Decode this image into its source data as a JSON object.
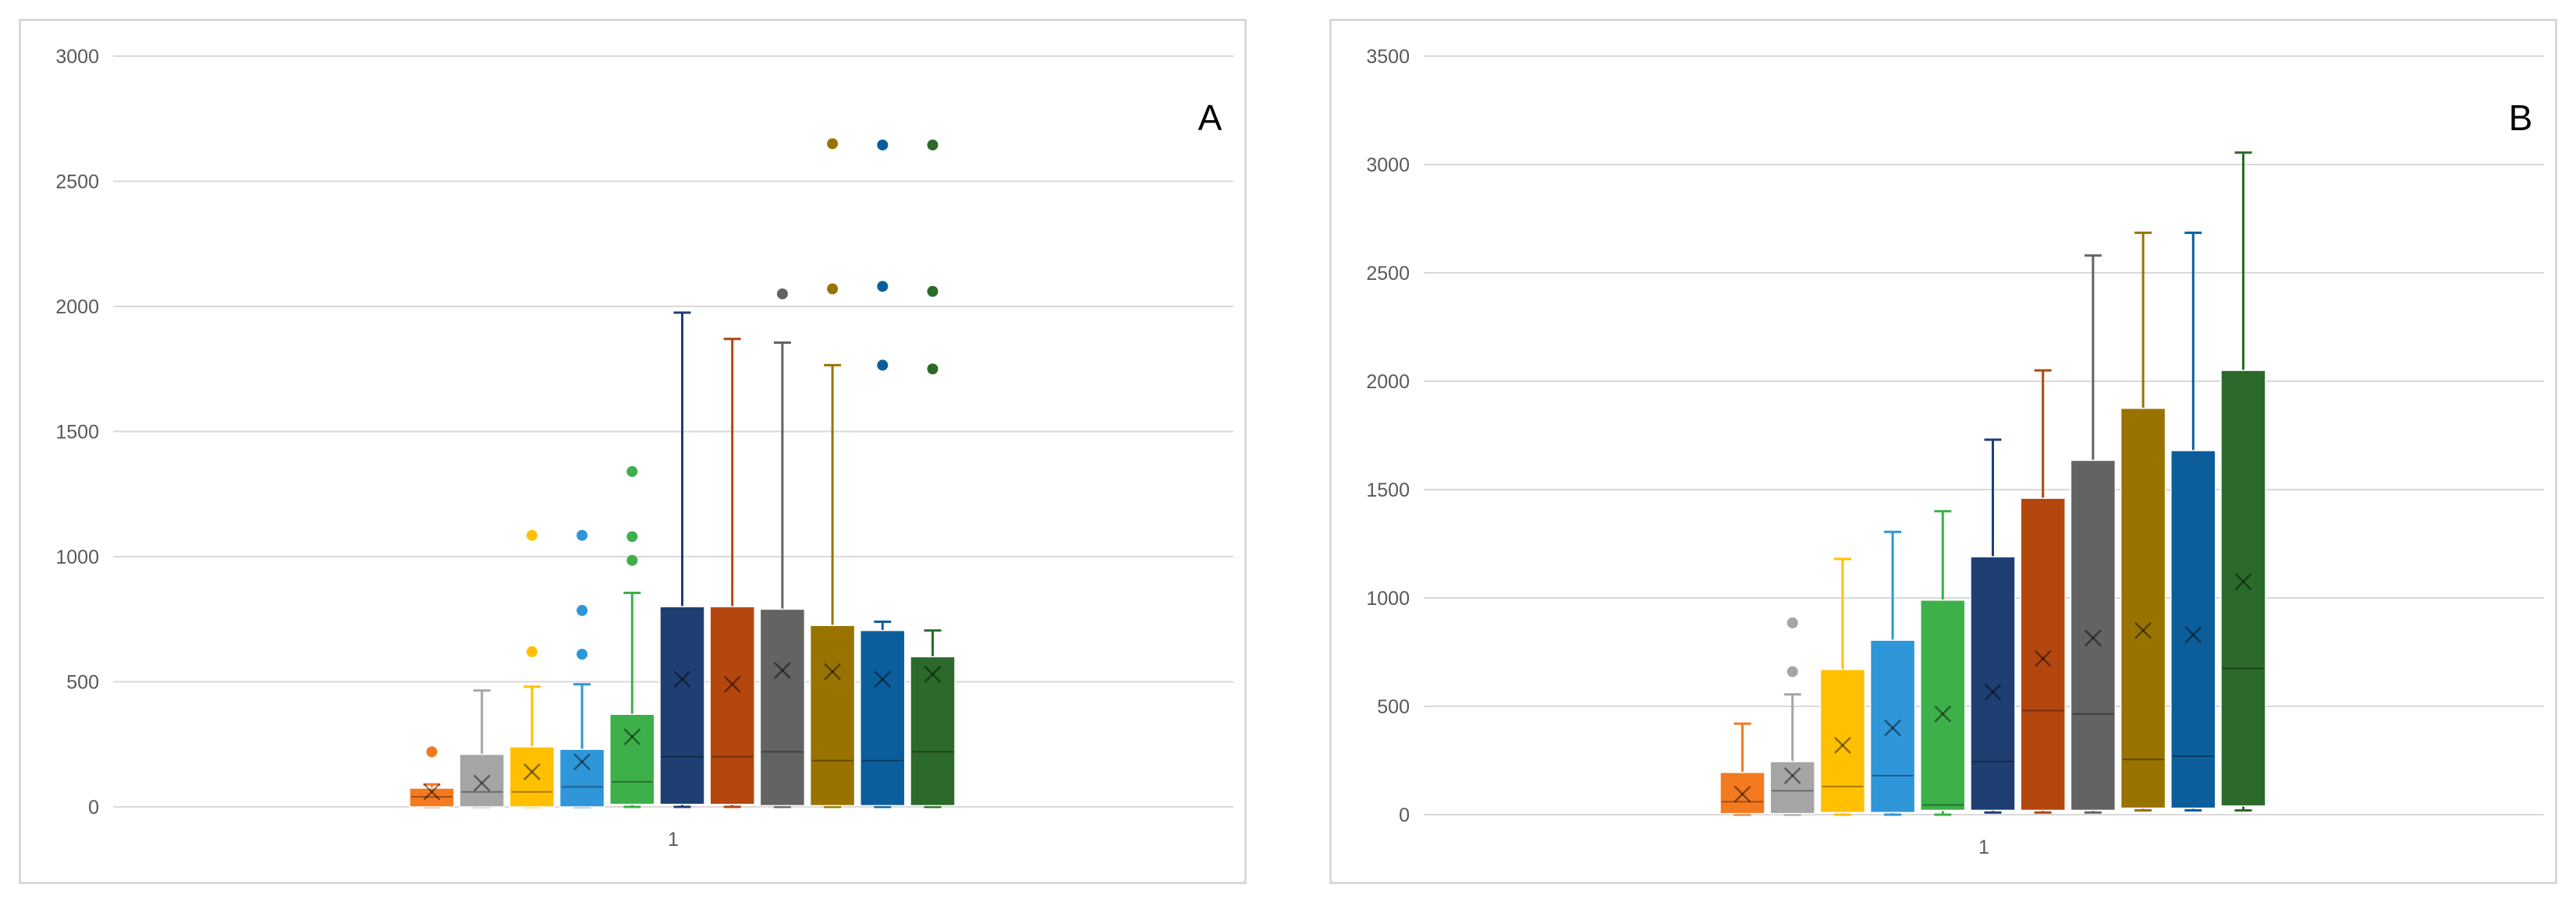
{
  "chart_data": [
    {
      "type": "boxplot",
      "panel_label": "A",
      "categories": [
        "1"
      ],
      "ylim": [
        0,
        3000
      ],
      "yticks": [
        0,
        500,
        1000,
        1500,
        2000,
        2500,
        3000
      ],
      "grid": true,
      "series": [
        {
          "color": "#F47A20",
          "min": 0,
          "q1": 0,
          "median": 40,
          "q3": 75,
          "max": 90,
          "mean": 60,
          "outliers": [
            220
          ]
        },
        {
          "color": "#A5A5A5",
          "min": 0,
          "q1": 0,
          "median": 60,
          "q3": 210,
          "max": 465,
          "mean": 95,
          "outliers": []
        },
        {
          "color": "#FFC000",
          "min": 0,
          "q1": 0,
          "median": 60,
          "q3": 240,
          "max": 480,
          "mean": 140,
          "outliers": [
            620,
            1085
          ]
        },
        {
          "color": "#2E96D9",
          "min": 0,
          "q1": 0,
          "median": 80,
          "q3": 230,
          "max": 490,
          "mean": 180,
          "outliers": [
            610,
            785,
            1085
          ]
        },
        {
          "color": "#3DB04A",
          "min": 0,
          "q1": 10,
          "median": 100,
          "q3": 370,
          "max": 855,
          "mean": 280,
          "outliers": [
            985,
            1080,
            1340
          ]
        },
        {
          "color": "#1F3F73",
          "min": 0,
          "q1": 10,
          "median": 200,
          "q3": 800,
          "max": 1975,
          "mean": 510,
          "outliers": []
        },
        {
          "color": "#B3470E",
          "min": 0,
          "q1": 10,
          "median": 200,
          "q3": 800,
          "max": 1870,
          "mean": 490,
          "outliers": []
        },
        {
          "color": "#636363",
          "min": 0,
          "q1": 5,
          "median": 220,
          "q3": 790,
          "max": 1855,
          "mean": 545,
          "outliers": [
            2050
          ]
        },
        {
          "color": "#997300",
          "min": 0,
          "q1": 5,
          "median": 185,
          "q3": 725,
          "max": 1765,
          "mean": 540,
          "outliers": [
            2070,
            2650
          ]
        },
        {
          "color": "#0B5E9B",
          "min": 0,
          "q1": 5,
          "median": 185,
          "q3": 705,
          "max": 740,
          "mean": 510,
          "outliers": [
            1765,
            2080,
            2645
          ]
        },
        {
          "color": "#2B6A2A",
          "min": 0,
          "q1": 5,
          "median": 220,
          "q3": 600,
          "max": 705,
          "mean": 530,
          "outliers": [
            1750,
            2060,
            2645
          ]
        }
      ]
    },
    {
      "type": "boxplot",
      "panel_label": "B",
      "categories": [
        "1"
      ],
      "ylim": [
        0,
        3500
      ],
      "yticks": [
        0,
        500,
        1000,
        1500,
        2000,
        2500,
        3000,
        3500
      ],
      "grid": true,
      "series": [
        {
          "color": "#F47A20",
          "min": 0,
          "q1": 5,
          "median": 60,
          "q3": 195,
          "max": 420,
          "mean": 95,
          "outliers": []
        },
        {
          "color": "#A5A5A5",
          "min": 0,
          "q1": 5,
          "median": 110,
          "q3": 245,
          "max": 555,
          "mean": 180,
          "outliers": [
            660,
            885
          ]
        },
        {
          "color": "#FFC000",
          "min": 0,
          "q1": 10,
          "median": 130,
          "q3": 670,
          "max": 1180,
          "mean": 320,
          "outliers": []
        },
        {
          "color": "#2E96D9",
          "min": 0,
          "q1": 10,
          "median": 180,
          "q3": 805,
          "max": 1305,
          "mean": 400,
          "outliers": []
        },
        {
          "color": "#3DB04A",
          "min": 0,
          "q1": 20,
          "median": 45,
          "q3": 990,
          "max": 1400,
          "mean": 465,
          "outliers": []
        },
        {
          "color": "#1F3F73",
          "min": 10,
          "q1": 20,
          "median": 245,
          "q3": 1190,
          "max": 1730,
          "mean": 565,
          "outliers": []
        },
        {
          "color": "#B3470E",
          "min": 10,
          "q1": 20,
          "median": 480,
          "q3": 1460,
          "max": 2050,
          "mean": 720,
          "outliers": []
        },
        {
          "color": "#636363",
          "min": 10,
          "q1": 20,
          "median": 465,
          "q3": 1635,
          "max": 2580,
          "mean": 815,
          "outliers": []
        },
        {
          "color": "#997300",
          "min": 20,
          "q1": 30,
          "median": 255,
          "q3": 1875,
          "max": 2685,
          "mean": 850,
          "outliers": []
        },
        {
          "color": "#0B5E9B",
          "min": 20,
          "q1": 30,
          "median": 270,
          "q3": 1680,
          "max": 2685,
          "mean": 830,
          "outliers": []
        },
        {
          "color": "#2B6A2A",
          "min": 20,
          "q1": 40,
          "median": 675,
          "q3": 2050,
          "max": 3055,
          "mean": 1075,
          "outliers": []
        }
      ]
    }
  ]
}
